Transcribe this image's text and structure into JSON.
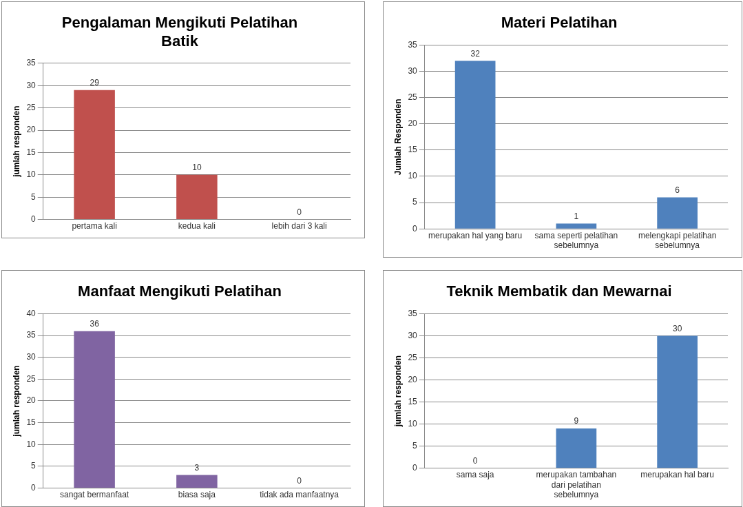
{
  "chart_data": [
    {
      "type": "bar",
      "title": "Pengalaman Mengikuti Pelatihan Batik",
      "ylabel": "jumlah responden",
      "categories": [
        "pertama kali",
        "kedua kali",
        "lebih dari 3 kali"
      ],
      "values": [
        29,
        10,
        0
      ],
      "color": "#c0504d",
      "ylim": [
        0,
        35
      ],
      "yticks": [
        0,
        5,
        10,
        15,
        20,
        25,
        30,
        35
      ],
      "grid": "y",
      "data_labels": true,
      "legend": false
    },
    {
      "type": "bar",
      "title": "Materi Pelatihan",
      "ylabel": "Jumlah Responden",
      "categories": [
        "merupakan hal yang baru",
        "sama seperti pelatihan sebelumnya",
        "melengkapi pelatihan sebelumnya"
      ],
      "values": [
        32,
        1,
        6
      ],
      "color": "#4f81bd",
      "ylim": [
        0,
        35
      ],
      "yticks": [
        0,
        5,
        10,
        15,
        20,
        25,
        30,
        35
      ],
      "grid": "y",
      "data_labels": true,
      "legend": false
    },
    {
      "type": "bar",
      "title": "Manfaat Mengikuti Pelatihan",
      "ylabel": "jumlah responden",
      "categories": [
        "sangat bermanfaat",
        "biasa saja",
        "tidak ada manfaatnya"
      ],
      "values": [
        36,
        3,
        0
      ],
      "color": "#8064a2",
      "ylim": [
        0,
        40
      ],
      "yticks": [
        0,
        5,
        10,
        15,
        20,
        25,
        30,
        35,
        40
      ],
      "grid": "y",
      "data_labels": true,
      "legend": false
    },
    {
      "type": "bar",
      "title": "Teknik Membatik dan Mewarnai",
      "ylabel": "jumlah responden",
      "categories": [
        "sama saja",
        "merupakan tambahan dari pelatihan sebelumnya",
        "merupakan hal baru"
      ],
      "values": [
        0,
        9,
        30
      ],
      "color": "#4f81bd",
      "ylim": [
        0,
        35
      ],
      "yticks": [
        0,
        5,
        10,
        15,
        20,
        25,
        30,
        35
      ],
      "grid": "y",
      "data_labels": true,
      "legend": false
    }
  ]
}
